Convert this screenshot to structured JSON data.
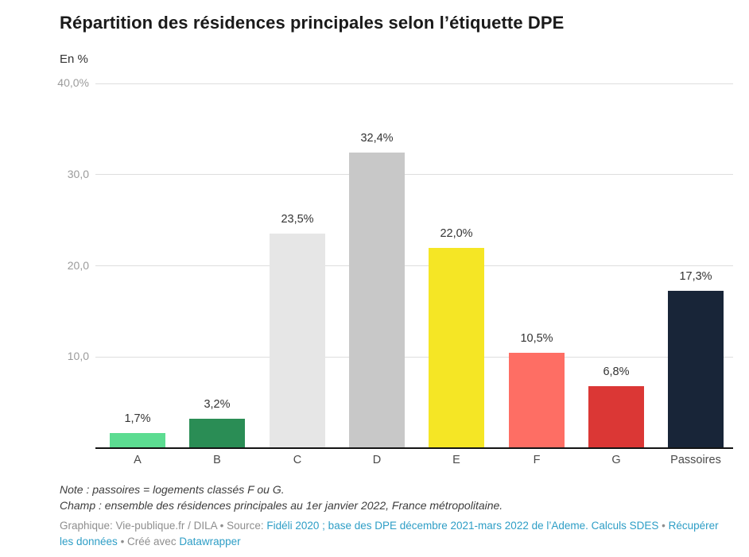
{
  "header": {
    "title": "Répartition des résidences principales selon l’étiquette DPE",
    "subtitle": "En %"
  },
  "chart_data": {
    "type": "bar",
    "categories": [
      "A",
      "B",
      "C",
      "D",
      "E",
      "F",
      "G",
      "Passoires"
    ],
    "values": [
      1.7,
      3.2,
      23.5,
      32.4,
      22.0,
      10.5,
      6.8,
      17.3
    ],
    "value_labels": [
      "1,7%",
      "3,2%",
      "23,5%",
      "32,4%",
      "22,0%",
      "10,5%",
      "6,8%",
      "17,3%"
    ],
    "bar_colors": [
      "#5cdc91",
      "#2a8d55",
      "#e6e6e6",
      "#c8c8c8",
      "#f5e625",
      "#fe6e64",
      "#db3735",
      "#182538"
    ],
    "title": "Répartition des résidences principales selon l’étiquette DPE",
    "subtitle": "En %",
    "xlabel": "",
    "ylabel": "En %",
    "ylim": [
      0,
      40
    ],
    "grid": true,
    "yticks": [
      {
        "value": 10,
        "label": "10,0"
      },
      {
        "value": 20,
        "label": "20,0"
      },
      {
        "value": 30,
        "label": "30,0"
      },
      {
        "value": 40,
        "label": "40,0%"
      }
    ]
  },
  "notes": {
    "line1": "Note : passoires = logements classés F ou G.",
    "line2": "Champ : ensemble des résidences principales au 1er janvier 2022, France métropolitaine."
  },
  "attribution": {
    "prefix": "Graphique: Vie-publique.fr / DILA • Source: ",
    "source_link": "Fidéli 2020 ; base des DPE décembre 2021-mars 2022 de l’Ademe. Calculs SDES",
    "sep1": " • ",
    "data_link": "Récupérer les données",
    "sep2": " • Créé avec ",
    "tool_link": "Datawrapper"
  }
}
